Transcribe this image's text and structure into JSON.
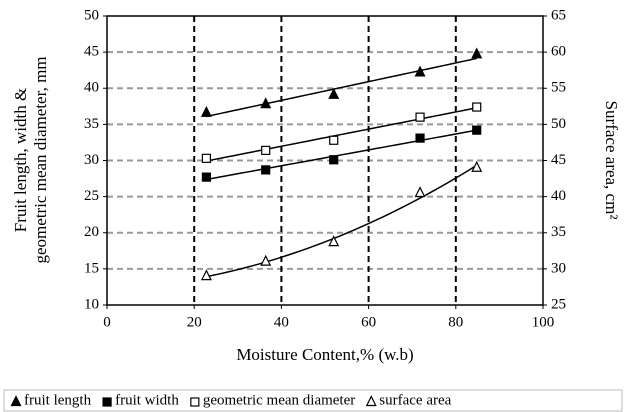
{
  "chart_data": {
    "type": "scatter",
    "x_label": "Moisture Content,% (w.b)",
    "y_label": [
      "Fruit length,  width &",
      "geometric mean diameter, mm"
    ],
    "y2_label": "Surface area, cm²",
    "x": [
      22.8,
      36.4,
      52,
      71.8,
      84.8
    ],
    "series": [
      {
        "name": "fruit length",
        "color": "#000000",
        "marker": "triangle",
        "trendline": "linear",
        "values": [
          36.6,
          37.8,
          39.1,
          42.2,
          44.7
        ]
      },
      {
        "name": "fruit width",
        "color": "#000000",
        "marker": "square",
        "trendline": "linear",
        "values": [
          27.7,
          28.7,
          30.1,
          33.1,
          34.2
        ]
      },
      {
        "name": "geometric mean diameter",
        "color": "#000000",
        "marker": "square-open",
        "trendline": "linear",
        "values": [
          30.3,
          31.4,
          32.8,
          36.0,
          37.4
        ]
      },
      {
        "name": "surface area",
        "color": "#000000",
        "marker": "triangle-open",
        "trendline": "polynomial",
        "axis": "y2",
        "values": [
          29.0,
          31.0,
          33.7,
          40.5,
          44.0
        ]
      }
    ],
    "xlim": [
      0,
      100
    ],
    "xticks": [
      0,
      20,
      40,
      60,
      80,
      100
    ],
    "ylim": [
      10,
      50
    ],
    "yticks": [
      10,
      15,
      20,
      25,
      30,
      35,
      40,
      45,
      50
    ],
    "y2lim": [
      25,
      65
    ],
    "y2ticks": [
      25,
      30,
      35,
      40,
      45,
      50,
      55,
      60,
      65
    ],
    "grid": true,
    "legend": "bottom"
  }
}
